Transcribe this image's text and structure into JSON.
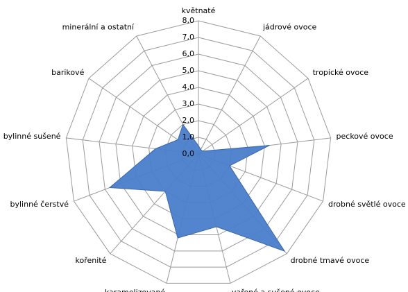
{
  "chart_data": {
    "type": "radar",
    "categories": [
      "květnaté",
      "jádrové ovoce",
      "tropické ovoce",
      "peckové ovoce",
      "drobné světlé ovoce",
      "drobné tmavé ovoce",
      "vařené a sušené ovoce",
      "karamelizované",
      "kořenité",
      "bylinné čerstvé",
      "bylinné sušené",
      "barikové",
      "minerální a ostatní"
    ],
    "values": [
      0.5,
      0.3,
      0.3,
      4.3,
      2.0,
      7.8,
      4.5,
      5.2,
      3.0,
      5.7,
      2.6,
      1.5,
      2.0
    ],
    "color": "#4a7ecb",
    "ylim": [
      0,
      8
    ],
    "yticks": [
      {
        "value": 0,
        "label": "0,0"
      },
      {
        "value": 1,
        "label": "1,0"
      },
      {
        "value": 2,
        "label": "2,0"
      },
      {
        "value": 3,
        "label": "3,0"
      },
      {
        "value": 4,
        "label": "4,0"
      },
      {
        "value": 5,
        "label": "5,0"
      },
      {
        "value": 6,
        "label": "6,0"
      },
      {
        "value": 7,
        "label": "7,0"
      },
      {
        "value": 8,
        "label": "8,0"
      }
    ],
    "grid": true
  }
}
